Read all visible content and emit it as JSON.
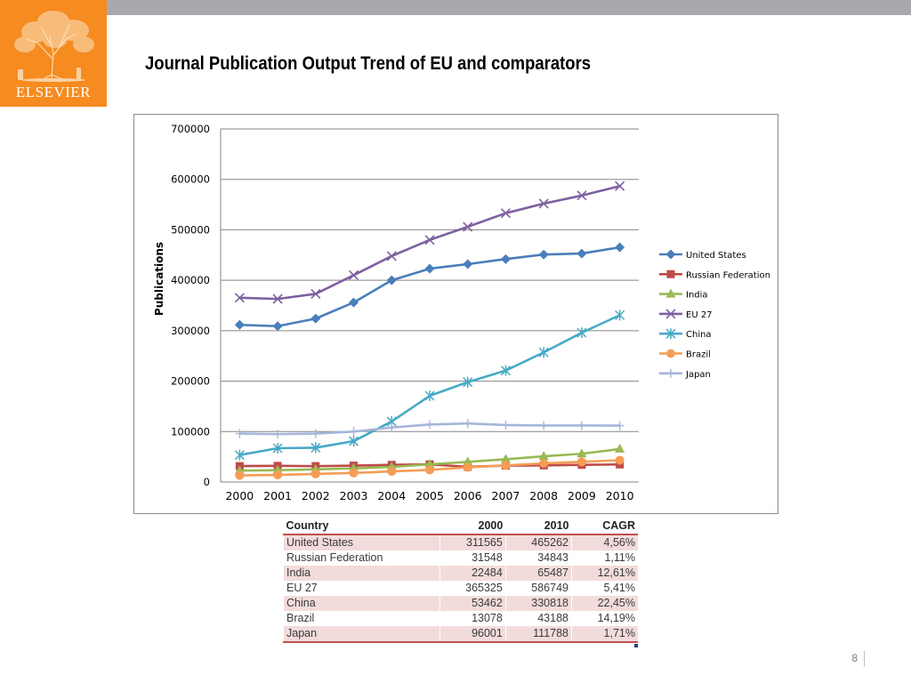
{
  "brand": {
    "name": "ELSEVIER",
    "colors": {
      "logo_bg": "#f68b1f",
      "top_bar": "#a9a9ad",
      "table_accent": "#c0504d",
      "table_band": "#f2dcdb"
    }
  },
  "slide": {
    "title": "Journal Publication Output Trend of EU and comparators",
    "page_number": "8"
  },
  "chart_data": {
    "type": "line",
    "title": "",
    "xlabel": "",
    "ylabel": "Publications",
    "categories": [
      "2000",
      "2001",
      "2002",
      "2003",
      "2004",
      "2005",
      "2006",
      "2007",
      "2008",
      "2009",
      "2010"
    ],
    "y_ticks": [
      "0",
      "100000",
      "200000",
      "300000",
      "400000",
      "500000",
      "600000",
      "700000"
    ],
    "ylim": [
      0,
      700000
    ],
    "grid": true,
    "legend_position": "right",
    "series": [
      {
        "name": "United States",
        "color": "#4a7ebb",
        "marker": "diamond",
        "values": [
          311565,
          309000,
          324000,
          356000,
          400000,
          423000,
          432000,
          442000,
          451000,
          453000,
          465262
        ]
      },
      {
        "name": "Russian Federation",
        "color": "#be4b48",
        "marker": "square",
        "values": [
          31548,
          32000,
          31500,
          32500,
          34000,
          35000,
          30000,
          32500,
          33000,
          34000,
          34843
        ]
      },
      {
        "name": "India",
        "color": "#98b954",
        "marker": "triangle",
        "values": [
          22484,
          23500,
          25000,
          27000,
          30000,
          35000,
          40000,
          45000,
          51000,
          56000,
          65487
        ]
      },
      {
        "name": "EU 27",
        "color": "#7d60a0",
        "marker": "x",
        "values": [
          365325,
          363000,
          373000,
          410000,
          448000,
          480000,
          506000,
          533000,
          552000,
          568000,
          586749
        ]
      },
      {
        "name": "China",
        "color": "#46aac5",
        "marker": "star",
        "values": [
          53462,
          67000,
          68000,
          81000,
          120000,
          171000,
          198000,
          221000,
          257000,
          296000,
          330818
        ]
      },
      {
        "name": "Brazil",
        "color": "#f59d56",
        "marker": "circle",
        "values": [
          13078,
          14000,
          16000,
          18000,
          21000,
          24000,
          29000,
          33000,
          37000,
          40000,
          43188
        ]
      },
      {
        "name": "Japan",
        "color": "#a5b6d9",
        "marker": "plus",
        "values": [
          96001,
          95000,
          96000,
          100000,
          108000,
          114000,
          116000,
          113000,
          112000,
          112000,
          111788
        ]
      }
    ]
  },
  "table": {
    "headers": [
      "Country",
      "2000",
      "2010",
      "CAGR"
    ],
    "rows": [
      [
        "United States",
        "311565",
        "465262",
        "4,56%"
      ],
      [
        "Russian Federation",
        "31548",
        "34843",
        "1,11%"
      ],
      [
        "India",
        "22484",
        "65487",
        "12,61%"
      ],
      [
        "EU 27",
        "365325",
        "586749",
        "5,41%"
      ],
      [
        "China",
        "53462",
        "330818",
        "22,45%"
      ],
      [
        "Brazil",
        "13078",
        "43188",
        "14,19%"
      ],
      [
        "Japan",
        "96001",
        "111788",
        "1,71%"
      ]
    ]
  }
}
